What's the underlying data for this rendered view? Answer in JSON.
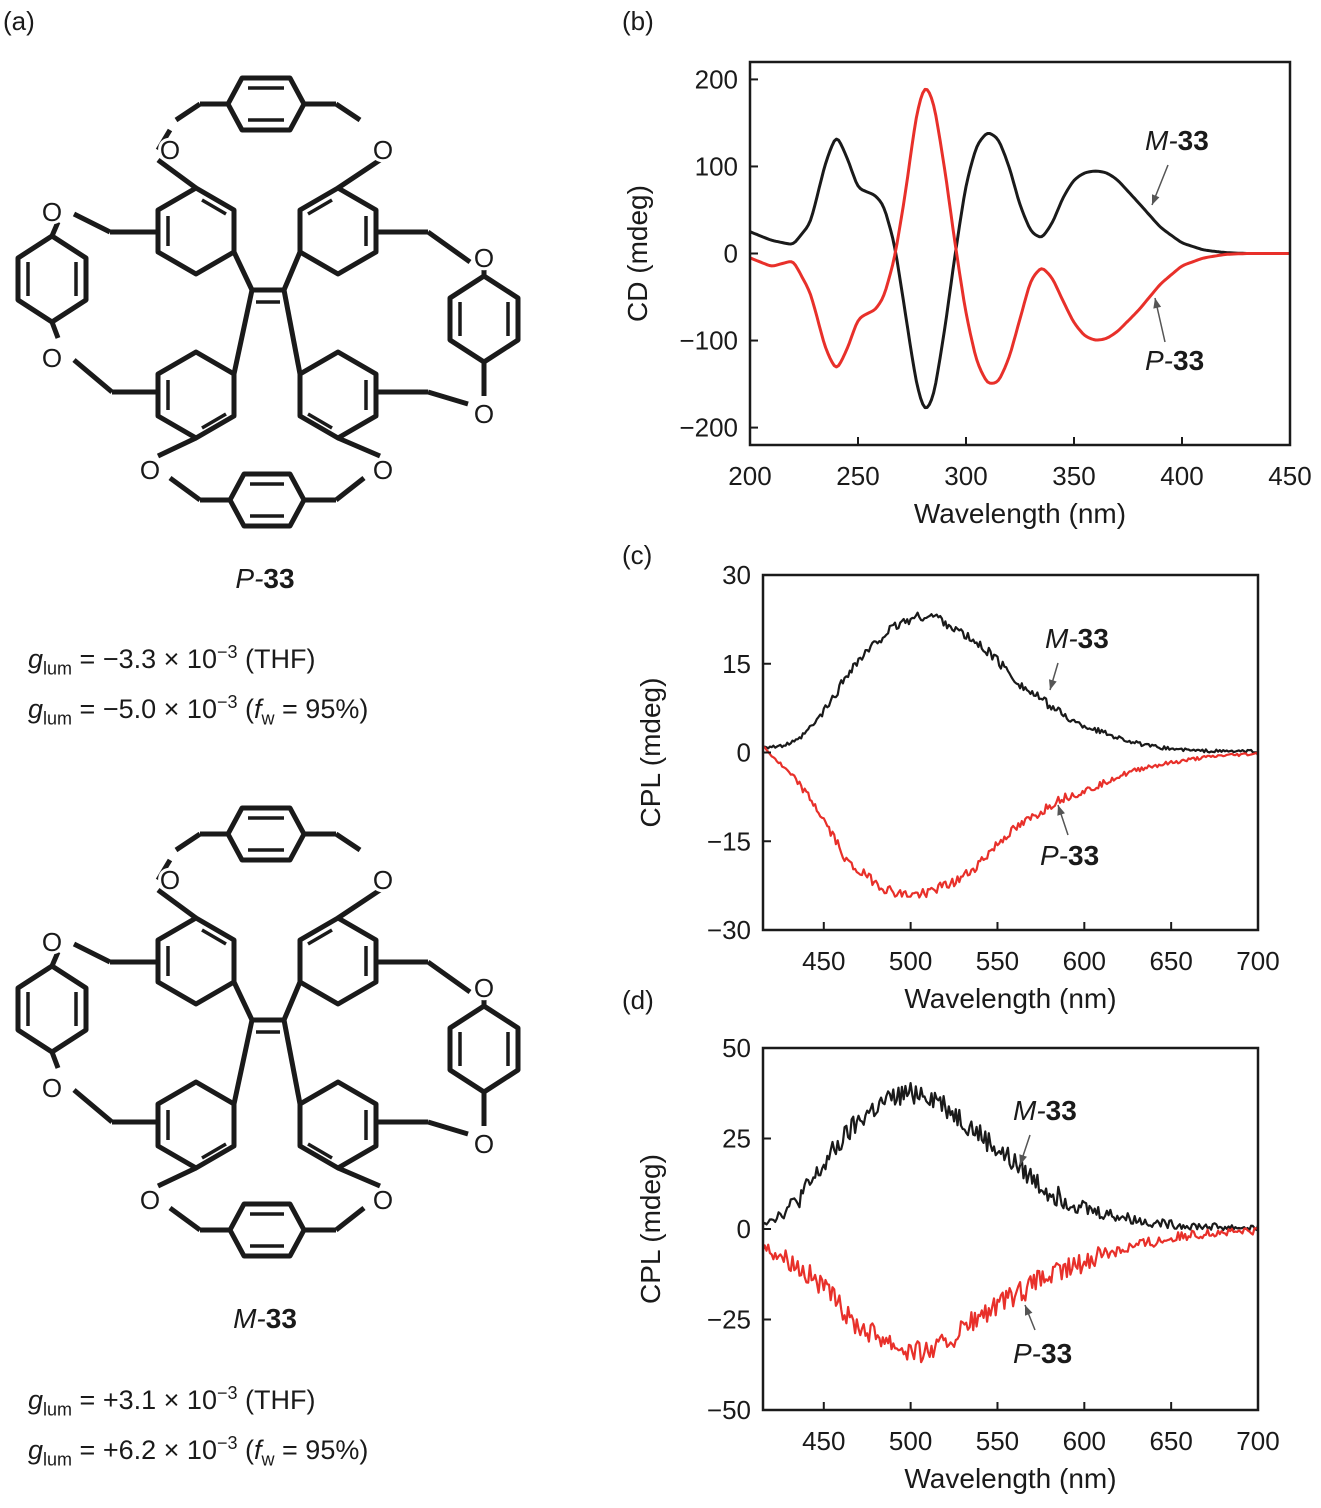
{
  "panel_labels": [
    "(a)",
    "(b)",
    "(c)",
    "(d)"
  ],
  "molecules": [
    {
      "name_prefix": "P-",
      "name_num": "33",
      "glum": [
        {
          "sign_value": "−3.3",
          "exp": "−3",
          "cond": "(THF)"
        },
        {
          "sign_value": "−5.0",
          "exp": "−3",
          "cond_pre": "(",
          "fw_symbol": "f",
          "fw_sub": "w",
          "cond_post": " = 95%)"
        }
      ]
    },
    {
      "name_prefix": "M-",
      "name_num": "33",
      "glum": [
        {
          "sign_value": "+3.1",
          "exp": "−3",
          "cond": "(THF)"
        },
        {
          "sign_value": "+6.2",
          "exp": "−3",
          "cond_pre": "(",
          "fw_symbol": "f",
          "fw_sub": "w",
          "cond_post": " = 95%)"
        }
      ]
    }
  ],
  "glum_symbol": "g",
  "glum_sub": "lum",
  "times_ten": "× 10",
  "atom_label": "O",
  "colors": {
    "M": "#1a1a1a",
    "P": "#e8302a"
  },
  "chart_data": [
    {
      "id": "b",
      "type": "line",
      "xlabel": "Wavelength (nm)",
      "ylabel": "CD (mdeg)",
      "xlim": [
        200,
        450
      ],
      "ylim": [
        -220,
        220
      ],
      "xticks": [
        200,
        250,
        300,
        350,
        400,
        450
      ],
      "yticks": [
        200,
        100,
        0,
        -100,
        -200
      ],
      "ytick_labels": [
        "200",
        "100",
        "0",
        "−100",
        "−200"
      ],
      "series": [
        {
          "name": "M-33",
          "color": "#1a1a1a",
          "x": [
            200,
            210,
            220,
            228,
            235,
            240,
            245,
            250,
            255,
            258,
            262,
            267,
            272,
            277,
            281,
            285,
            290,
            295,
            300,
            305,
            310,
            315,
            320,
            325,
            330,
            335,
            340,
            345,
            350,
            355,
            360,
            365,
            370,
            380,
            390,
            400,
            410,
            420,
            430,
            450
          ],
          "y": [
            25,
            15,
            10,
            35,
            105,
            137,
            110,
            75,
            70,
            67,
            55,
            10,
            -70,
            -150,
            -183,
            -165,
            -90,
            0,
            80,
            125,
            140,
            132,
            100,
            55,
            25,
            17,
            35,
            65,
            85,
            93,
            95,
            93,
            85,
            58,
            30,
            12,
            4,
            1,
            0,
            0
          ]
        },
        {
          "name": "P-33",
          "color": "#e8302a",
          "x": [
            200,
            210,
            220,
            228,
            235,
            240,
            245,
            250,
            255,
            258,
            262,
            267,
            272,
            277,
            281,
            285,
            290,
            295,
            300,
            305,
            310,
            315,
            320,
            325,
            330,
            335,
            340,
            345,
            350,
            355,
            360,
            365,
            370,
            380,
            390,
            400,
            410,
            420,
            430,
            450
          ],
          "y": [
            -5,
            -15,
            -8,
            -45,
            -110,
            -135,
            -110,
            -75,
            -68,
            -65,
            -50,
            -5,
            70,
            160,
            195,
            175,
            100,
            10,
            -70,
            -125,
            -150,
            -148,
            -120,
            -75,
            -30,
            -15,
            -28,
            -55,
            -80,
            -95,
            -100,
            -98,
            -90,
            -65,
            -35,
            -14,
            -5,
            -1,
            0,
            0
          ]
        }
      ],
      "annotations": [
        {
          "series": "M-33",
          "text_prefix": "M-",
          "text_num": "33",
          "tx": 1145,
          "ty": 150,
          "x1": 1168,
          "y1": 165,
          "x2": 1152,
          "y2": 205
        },
        {
          "series": "P-33",
          "text_prefix": "P-",
          "text_num": "33",
          "tx": 1145,
          "ty": 370,
          "x1": 1165,
          "y1": 342,
          "x2": 1155,
          "y2": 298
        }
      ]
    },
    {
      "id": "c",
      "type": "line",
      "xlabel": "Wavelength (nm)",
      "ylabel": "CPL (mdeg)",
      "xlim": [
        415,
        700
      ],
      "ylim": [
        -30,
        30
      ],
      "xticks": [
        450,
        500,
        550,
        600,
        650,
        700
      ],
      "yticks": [
        30,
        15,
        0,
        -15,
        -30
      ],
      "ytick_labels": [
        "30",
        "15",
        "0",
        "−15",
        "−30"
      ],
      "noise": 0.6,
      "series": [
        {
          "name": "M-33",
          "color": "#1a1a1a",
          "x": [
            415,
            425,
            435,
            445,
            455,
            465,
            475,
            485,
            495,
            505,
            515,
            525,
            535,
            545,
            555,
            565,
            575,
            585,
            595,
            605,
            615,
            625,
            635,
            645,
            655,
            665,
            680,
            700
          ],
          "y": [
            1,
            1,
            2,
            5,
            9,
            14,
            17,
            20,
            22,
            23,
            23,
            21,
            19,
            17,
            14,
            11,
            9,
            7,
            5,
            4,
            3,
            2,
            1.2,
            0.8,
            0.5,
            0.3,
            0.2,
            0.2
          ]
        },
        {
          "name": "P-33",
          "color": "#e8302a",
          "x": [
            415,
            425,
            435,
            445,
            455,
            465,
            475,
            485,
            495,
            505,
            515,
            525,
            535,
            545,
            555,
            565,
            575,
            585,
            595,
            605,
            615,
            625,
            635,
            645,
            655,
            665,
            680,
            700
          ],
          "y": [
            1,
            -2,
            -5,
            -9,
            -14,
            -19,
            -21,
            -23,
            -24,
            -24,
            -23,
            -22,
            -20,
            -17,
            -14,
            -12,
            -10,
            -8,
            -7,
            -6,
            -4.5,
            -3.5,
            -2.5,
            -2,
            -1.5,
            -1,
            -0.5,
            -0.2
          ]
        }
      ],
      "annotations": [
        {
          "series": "M-33",
          "text_prefix": "M-",
          "text_num": "33",
          "tx": 1045,
          "ty": 648,
          "x1": 1058,
          "y1": 663,
          "x2": 1050,
          "y2": 690
        },
        {
          "series": "P-33",
          "text_prefix": "P-",
          "text_num": "33",
          "tx": 1040,
          "ty": 865,
          "x1": 1068,
          "y1": 835,
          "x2": 1058,
          "y2": 805
        }
      ]
    },
    {
      "id": "d",
      "type": "line",
      "xlabel": "Wavelength (nm)",
      "ylabel": "CPL (mdeg)",
      "xlim": [
        415,
        700
      ],
      "ylim": [
        -50,
        50
      ],
      "xticks": [
        450,
        500,
        550,
        600,
        650,
        700
      ],
      "yticks": [
        50,
        25,
        0,
        -25,
        -50
      ],
      "ytick_labels": [
        "50",
        "25",
        "0",
        "−25",
        "−50"
      ],
      "noise": 2.2,
      "series": [
        {
          "name": "M-33",
          "color": "#1a1a1a",
          "x": [
            415,
            425,
            435,
            445,
            455,
            465,
            475,
            485,
            495,
            505,
            515,
            525,
            535,
            545,
            555,
            565,
            575,
            585,
            595,
            605,
            615,
            625,
            635,
            645,
            655,
            665,
            680,
            700
          ],
          "y": [
            2,
            4,
            8,
            14,
            21,
            27,
            32,
            35,
            37,
            38,
            36,
            32,
            28,
            24,
            20,
            16,
            12,
            9,
            7,
            5,
            4,
            3,
            2,
            1.5,
            1,
            0.8,
            0.5,
            0.3
          ]
        },
        {
          "name": "P-33",
          "color": "#e8302a",
          "x": [
            415,
            425,
            435,
            445,
            455,
            465,
            475,
            485,
            495,
            505,
            515,
            525,
            535,
            545,
            555,
            565,
            575,
            585,
            595,
            605,
            615,
            625,
            635,
            645,
            655,
            665,
            680,
            700
          ],
          "y": [
            -5,
            -7,
            -10,
            -14,
            -19,
            -25,
            -28,
            -30,
            -33,
            -34,
            -33,
            -30,
            -26,
            -23,
            -20,
            -17,
            -14,
            -12,
            -10,
            -8,
            -6,
            -5,
            -4,
            -3,
            -2,
            -1.5,
            -1,
            -0.5
          ]
        }
      ],
      "annotations": [
        {
          "series": "M-33",
          "text_prefix": "M-",
          "text_num": "33",
          "tx": 1013,
          "ty": 1120,
          "x1": 1030,
          "y1": 1135,
          "x2": 1020,
          "y2": 1165
        },
        {
          "series": "P-33",
          "text_prefix": "P-",
          "text_num": "33",
          "tx": 1013,
          "ty": 1363,
          "x1": 1035,
          "y1": 1330,
          "x2": 1025,
          "y2": 1305
        }
      ]
    }
  ]
}
